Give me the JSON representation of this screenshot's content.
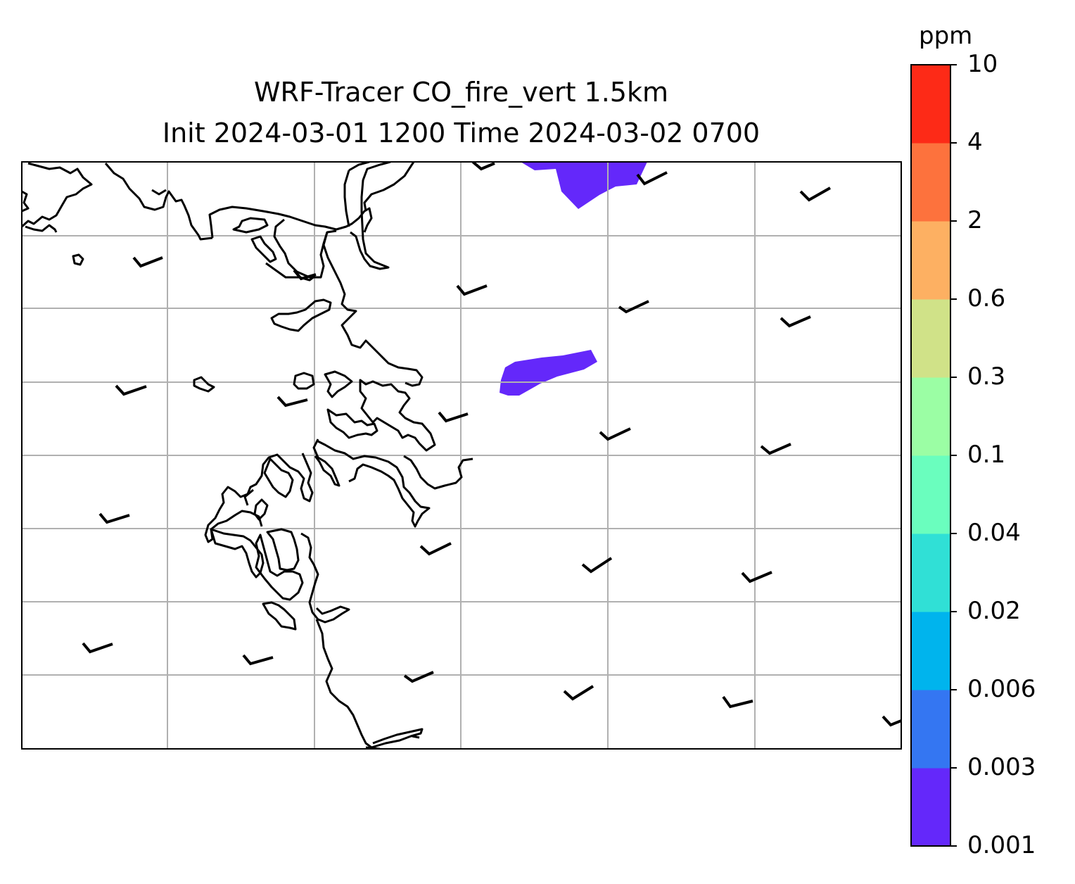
{
  "title": {
    "line1": "WRF-Tracer CO_fire_vert 1.5km",
    "line2": "Init 2024-03-01 1200 Time 2024-03-02 0700"
  },
  "colorbar": {
    "unit": "ppm",
    "tick_labels": [
      "0.001",
      "0.003",
      "0.006",
      "0.02",
      "0.04",
      "0.1",
      "0.3",
      "0.6",
      "2",
      "4",
      "10"
    ],
    "colors": [
      "#6428fa",
      "#3476f2",
      "#00b4ed",
      "#30e0d6",
      "#6afebe",
      "#9bfea4",
      "#d0e288",
      "#fdb062",
      "#fd723d",
      "#fd2a17"
    ]
  },
  "map": {
    "features": [
      "coastline",
      "gridlines",
      "wind-barbs",
      "tracer-plume"
    ],
    "plume_color": "#6428fa"
  }
}
